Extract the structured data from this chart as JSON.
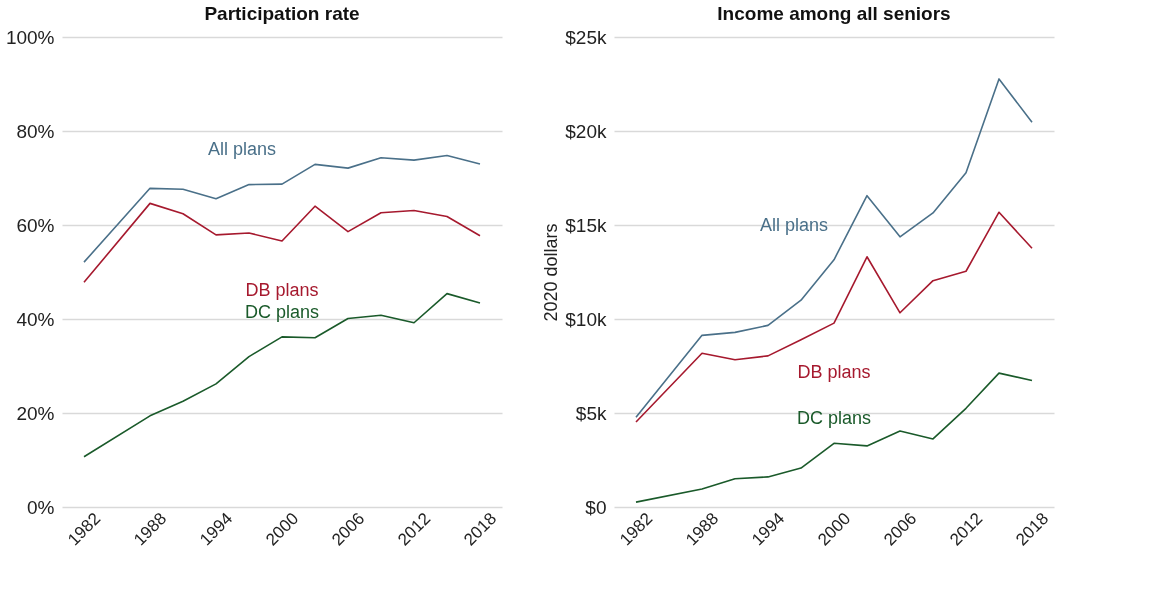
{
  "chart_data": [
    {
      "type": "line",
      "title": "Participation rate",
      "x": [
        1982,
        1988,
        1991,
        1994,
        1997,
        2000,
        2003,
        2006,
        2009,
        2012,
        2015,
        2018
      ],
      "series": [
        {
          "name": "All plans",
          "color": "#4a7089",
          "values": [
            52.1,
            67.8,
            67.6,
            65.6,
            68.6,
            68.7,
            72.9,
            72.1,
            74.3,
            73.8,
            74.8,
            73.0
          ]
        },
        {
          "name": "DB plans",
          "color": "#a6192e",
          "values": [
            47.8,
            64.6,
            62.4,
            57.9,
            58.3,
            56.6,
            64.0,
            58.6,
            62.6,
            63.1,
            61.8,
            57.7
          ]
        },
        {
          "name": "DC plans",
          "color": "#1a5a2a",
          "values": [
            10.7,
            19.4,
            22.5,
            26.2,
            32.0,
            36.2,
            36.0,
            40.1,
            40.8,
            39.2,
            45.4,
            43.4
          ]
        }
      ],
      "xlim": [
        1980,
        2020
      ],
      "xticks": [
        1982,
        1988,
        1994,
        2000,
        2006,
        2012,
        2018
      ],
      "ylim": [
        0,
        100
      ],
      "yticks": [
        {
          "value": 0,
          "label": "0%"
        },
        {
          "value": 20,
          "label": "20%"
        },
        {
          "value": 40,
          "label": "40%"
        },
        {
          "value": 60,
          "label": "60%"
        },
        {
          "value": 80,
          "label": "80%"
        },
        {
          "value": 100,
          "label": "100%"
        }
      ],
      "grid": "y",
      "line_style": "solid"
    },
    {
      "type": "line",
      "title": "Income among all seniors",
      "ylabel": "2020 dollars",
      "x": [
        1982,
        1988,
        1991,
        1994,
        1997,
        2000,
        2003,
        2006,
        2009,
        2012,
        2015,
        2018
      ],
      "series": [
        {
          "name": "All plans",
          "color": "#4a7089",
          "values": [
            4780,
            9130,
            9290,
            9660,
            11000,
            13150,
            16560,
            14370,
            15640,
            17780,
            22770,
            20460
          ]
        },
        {
          "name": "DB plans",
          "color": "#a6192e",
          "values": [
            4520,
            8180,
            7830,
            8040,
            8900,
            9780,
            13310,
            10330,
            12040,
            12540,
            15680,
            13760
          ]
        },
        {
          "name": "DC plans",
          "color": "#1a5a2a",
          "values": [
            260,
            960,
            1500,
            1600,
            2070,
            3390,
            3250,
            4040,
            3620,
            5250,
            7120,
            6730
          ]
        }
      ],
      "xlim": [
        1980,
        2020
      ],
      "xticks": [
        1982,
        1988,
        1994,
        2000,
        2006,
        2012,
        2018
      ],
      "ylim": [
        0,
        25000
      ],
      "yticks": [
        {
          "value": 0,
          "label": "$0"
        },
        {
          "value": 5000,
          "label": "$5k"
        },
        {
          "value": 10000,
          "label": "$10k"
        },
        {
          "value": 15000,
          "label": "$15k"
        },
        {
          "value": 20000,
          "label": "$20k"
        },
        {
          "value": 25000,
          "label": "$25k"
        }
      ],
      "grid": "y",
      "line_style": "solid"
    }
  ]
}
